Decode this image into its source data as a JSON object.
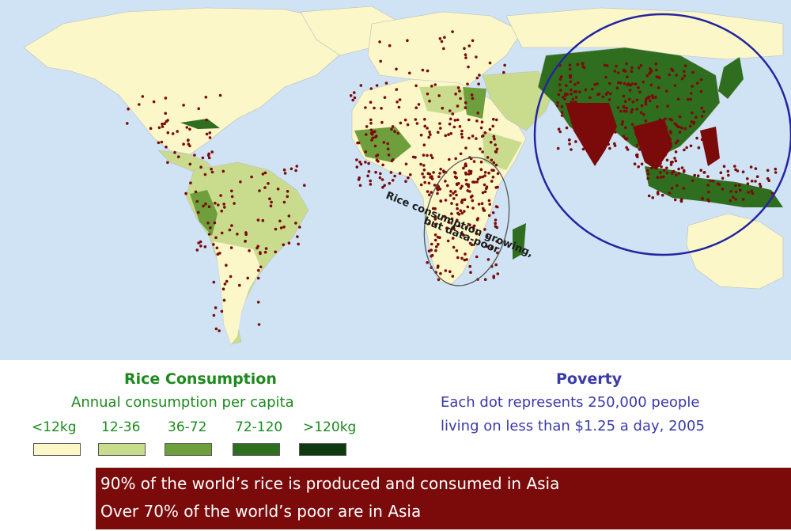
{
  "map": {
    "annotation": "Rice consumption growing, but data-poor",
    "annotation_line1": "Rice consumption growing,",
    "annotation_line2": "but data-poor",
    "colors": {
      "ocean": "#cfe3f5",
      "land_low": "#fbf7c8",
      "land_light": "#c9dc8e",
      "land_mid": "#6f9e3c",
      "land_dark": "#2f6e1e",
      "land_darkest": "#0f3a0f",
      "poverty_dot": "#7b0a0a",
      "asia_circle": "#2424a0",
      "africa_ellipse": "#555555"
    }
  },
  "legend": {
    "rice_title": "Rice Consumption",
    "rice_subtitle": "Annual consumption per capita",
    "bins": [
      {
        "label": "<12kg",
        "color": "#fbf7c8"
      },
      {
        "label": "12-36",
        "color": "#c9dc8e"
      },
      {
        "label": "36-72",
        "color": "#6f9e3c"
      },
      {
        "label": "72-120",
        "color": "#2f6e1e"
      },
      {
        "label": ">120kg",
        "color": "#0f3a0f"
      }
    ],
    "poverty_title": "Poverty",
    "poverty_line1": "Each dot represents 250,000 people",
    "poverty_line2": "living on less than $1.25 a day, 2005"
  },
  "banner": {
    "line1": "90% of the world’s rice is produced and consumed in Asia",
    "line2": "Over 70% of the world’s poor are in Asia"
  }
}
